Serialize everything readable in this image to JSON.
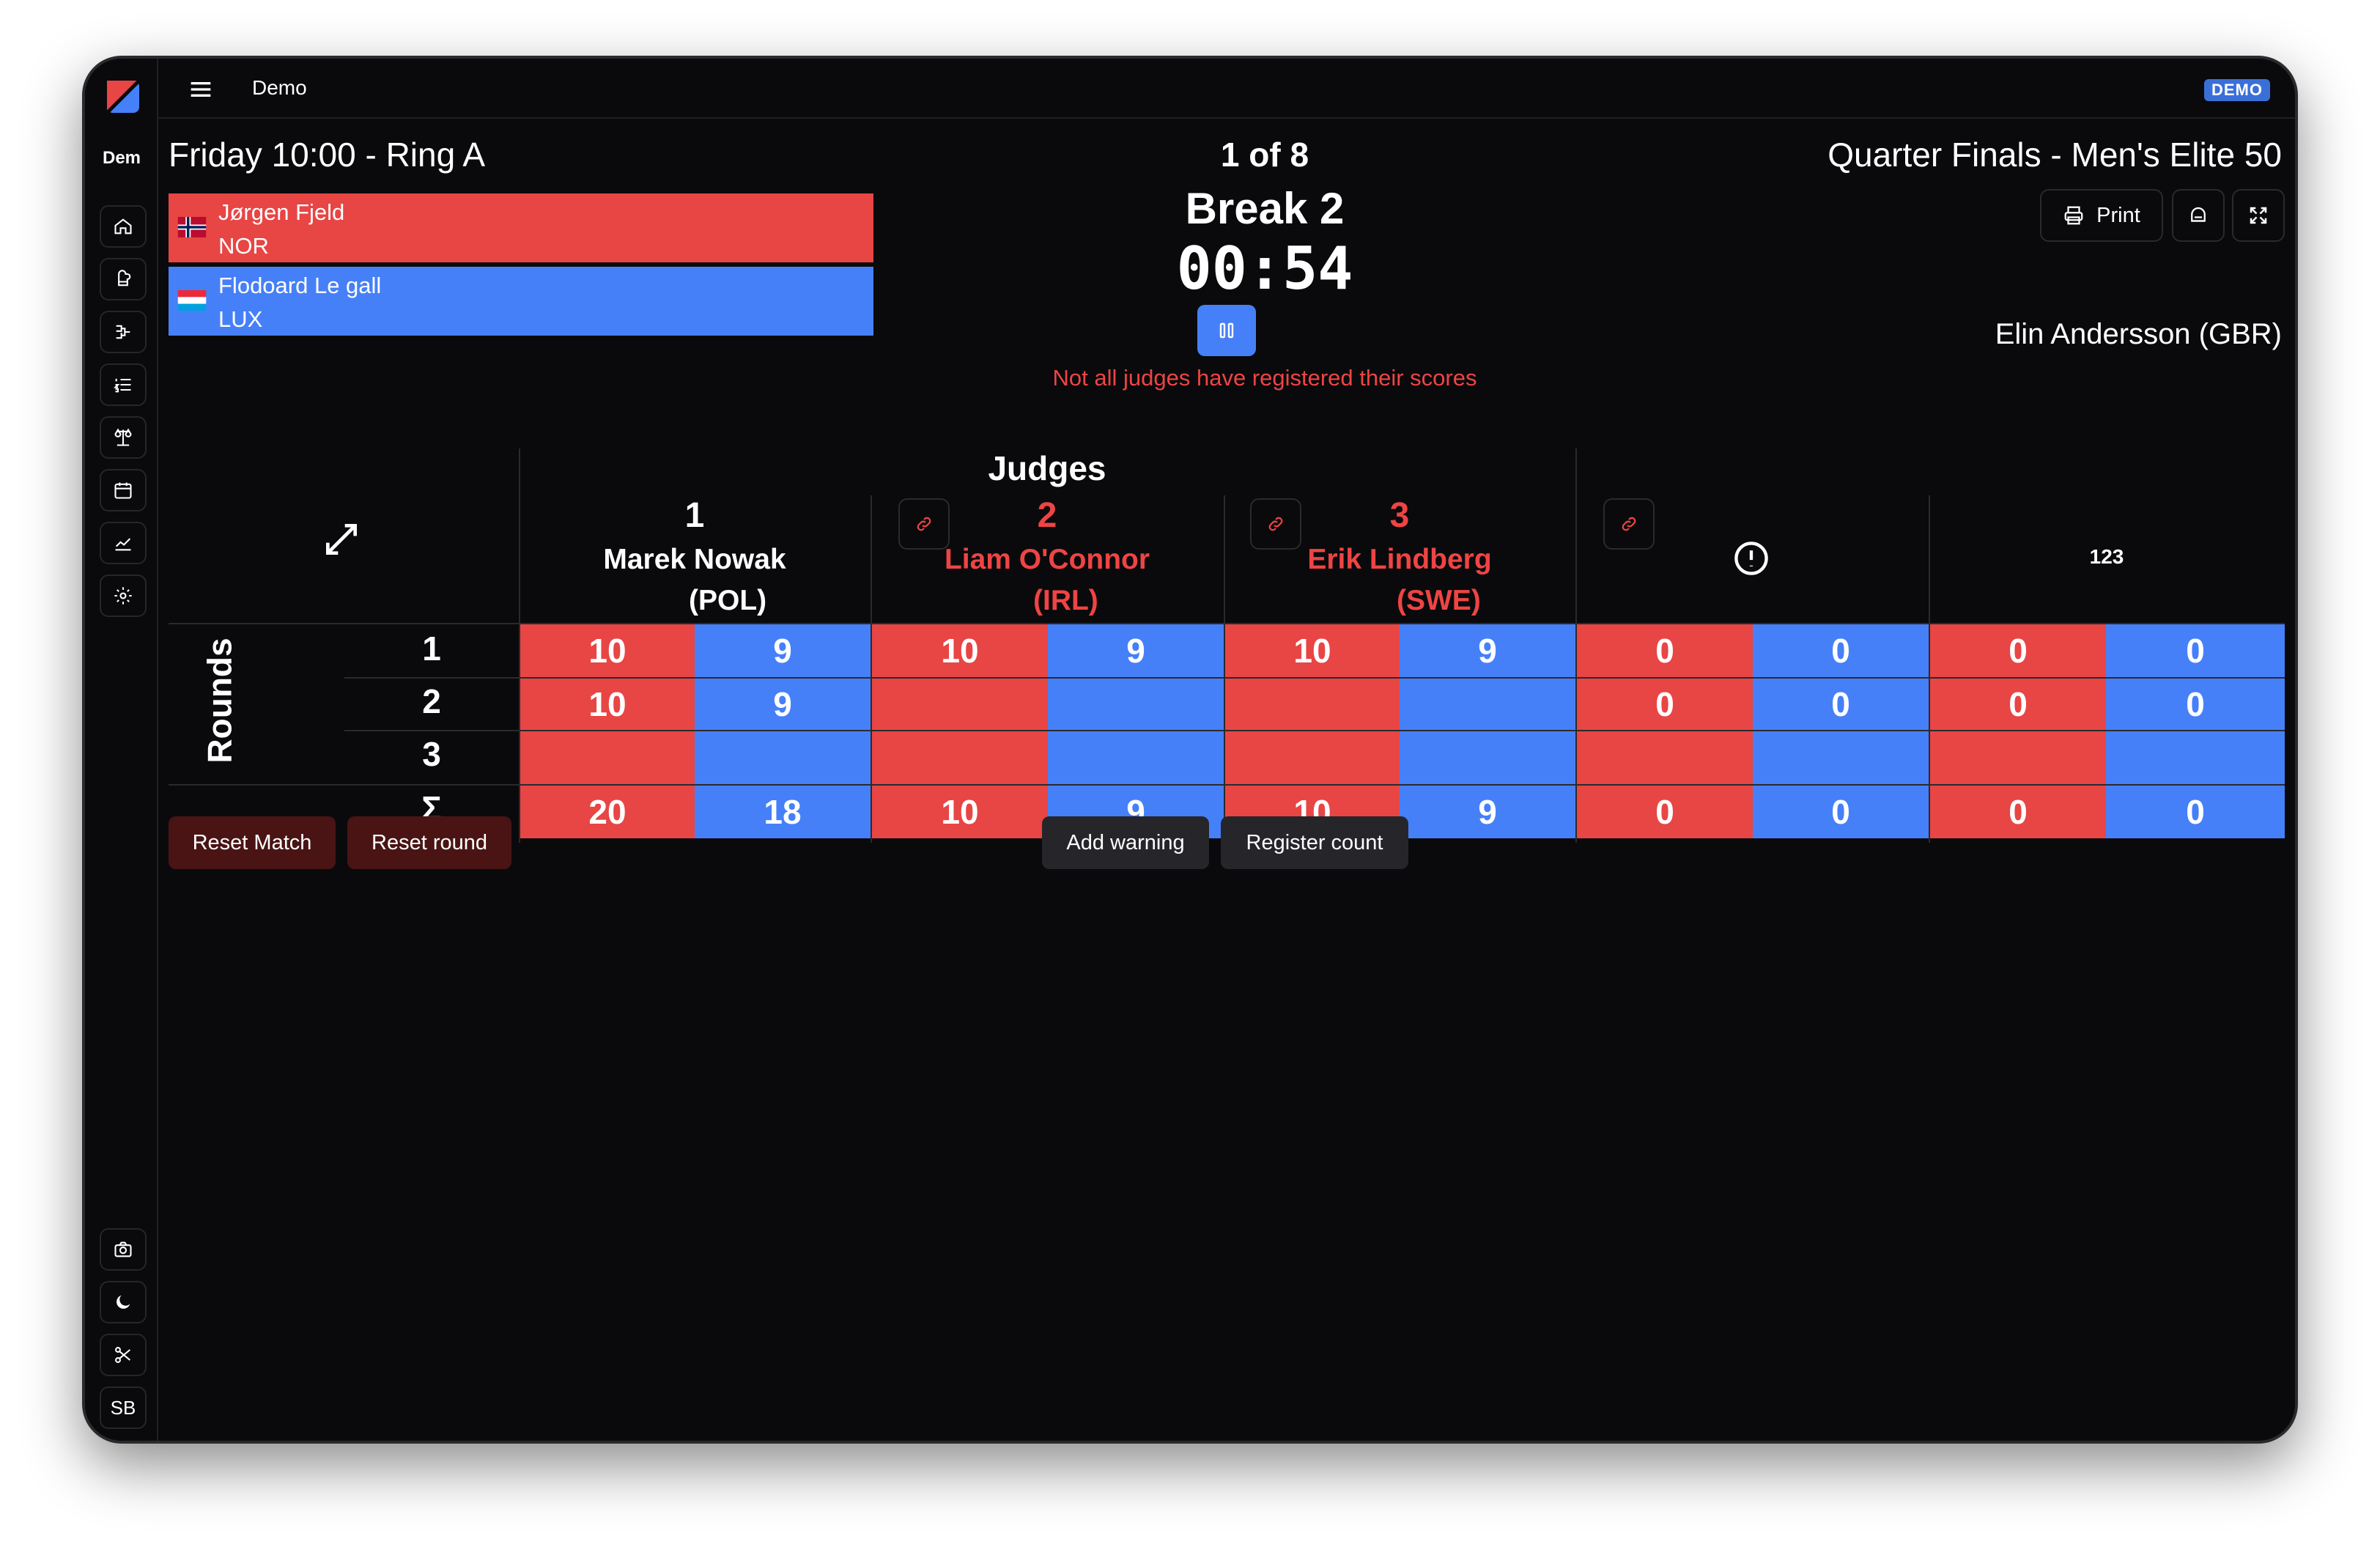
{
  "app": {
    "brand": "Dem",
    "title": "Demo",
    "badge": "DEMO",
    "user_initials": "SB"
  },
  "header": {
    "session": "Friday 10:00 - Ring A",
    "match_index": "1 of 8",
    "category": "Quarter Finals - Men's Elite 50"
  },
  "fighters": {
    "red": {
      "name": "Jørgen Fjeld",
      "nation": "NOR",
      "flag": "norway-flag"
    },
    "blue": {
      "name": "Flodoard Le gall",
      "nation": "LUX",
      "flag": "luxembourg-flag"
    }
  },
  "timer": {
    "phase": "Break 2",
    "time": "00:54",
    "message": "Not all judges have registered their scores"
  },
  "controls": {
    "print_label": "Print"
  },
  "referee": "Elin Andersson (GBR)",
  "table": {
    "judges_title": "Judges",
    "rounds_label": "Rounds",
    "sum_label": "Σ",
    "warnings_header_icon": "exclamation-circle-icon",
    "count_header_label": "123",
    "judges": [
      {
        "number": "1",
        "name": "Marek Nowak",
        "country": "(POL)",
        "color": "#ffffff"
      },
      {
        "number": "2",
        "name": "Liam O'Connor",
        "country": "(IRL)",
        "color": "#ef4444"
      },
      {
        "number": "3",
        "name": "Erik Lindberg",
        "country": "(SWE)",
        "color": "#ef4444"
      }
    ],
    "round_labels": [
      "1",
      "2",
      "3"
    ],
    "scores": [
      [
        [
          "10",
          "9"
        ],
        [
          "10",
          "9"
        ],
        [
          "10",
          "9"
        ],
        [
          "0",
          "0"
        ],
        [
          "0",
          "0"
        ]
      ],
      [
        [
          "10",
          "9"
        ],
        [
          "",
          ""
        ],
        [
          "",
          ""
        ],
        [
          "0",
          "0"
        ],
        [
          "0",
          "0"
        ]
      ],
      [
        [
          "",
          ""
        ],
        [
          "",
          ""
        ],
        [
          "",
          ""
        ],
        [
          "",
          ""
        ],
        [
          "",
          ""
        ]
      ]
    ],
    "totals": [
      [
        "20",
        "18"
      ],
      [
        "10",
        "9"
      ],
      [
        "10",
        "9"
      ],
      [
        "0",
        "0"
      ],
      [
        "0",
        "0"
      ]
    ]
  },
  "actions": {
    "reset_match": "Reset Match",
    "reset_round": "Reset round",
    "add_warning": "Add warning",
    "register_count": "Register count"
  },
  "colors": {
    "red": "#e84545",
    "blue": "#4680f8",
    "background": "#0a0a0c",
    "accent": "#3b6fd8"
  }
}
